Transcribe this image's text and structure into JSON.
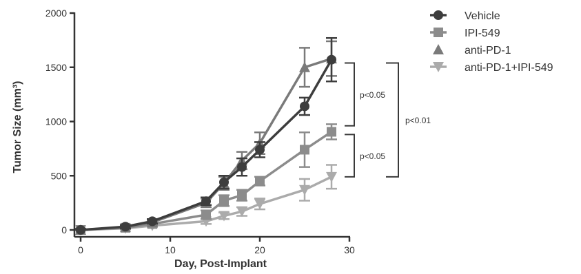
{
  "chart_data": {
    "type": "line",
    "xlabel": "Day, Post-Implant",
    "ylabel": "Tumor Size (mm³)",
    "xlim": [
      0,
      30
    ],
    "ylim": [
      0,
      2000
    ],
    "xticks": [
      0,
      10,
      20,
      30
    ],
    "yticks": [
      0,
      500,
      1000,
      1500,
      2000
    ],
    "grid": false,
    "legend_position": "top-right",
    "series": [
      {
        "name": "Vehicle",
        "marker": "circle",
        "color": "#3d3d3d",
        "x": [
          0,
          5,
          8,
          14,
          16,
          18,
          20,
          25,
          28
        ],
        "y": [
          0,
          30,
          80,
          265,
          440,
          580,
          740,
          1140,
          1570
        ],
        "err": [
          10,
          15,
          20,
          35,
          60,
          80,
          70,
          80,
          200
        ]
      },
      {
        "name": "IPI-549",
        "marker": "square",
        "color": "#8c8c8c",
        "x": [
          0,
          5,
          8,
          14,
          16,
          18,
          20,
          25,
          28
        ],
        "y": [
          0,
          20,
          55,
          140,
          270,
          320,
          450,
          740,
          905
        ],
        "err": [
          5,
          10,
          15,
          40,
          50,
          50,
          40,
          160,
          70
        ]
      },
      {
        "name": "anti-PD-1",
        "marker": "triangle-up",
        "color": "#7a7a7a",
        "x": [
          0,
          5,
          8,
          14,
          16,
          18,
          20,
          25,
          28
        ],
        "y": [
          0,
          25,
          70,
          250,
          430,
          640,
          800,
          1500,
          1580
        ],
        "err": [
          5,
          15,
          20,
          40,
          60,
          80,
          100,
          180,
          160
        ]
      },
      {
        "name": "anti-PD-1+IPI-549",
        "marker": "triangle-down",
        "color": "#ababab",
        "x": [
          0,
          5,
          8,
          14,
          16,
          18,
          20,
          25,
          28
        ],
        "y": [
          0,
          15,
          40,
          80,
          130,
          170,
          240,
          370,
          490
        ],
        "err": [
          5,
          10,
          15,
          25,
          30,
          40,
          50,
          100,
          110
        ]
      }
    ],
    "annotations": [
      {
        "text": "p<0.05"
      },
      {
        "text": "p<0.05"
      },
      {
        "text": "p<0.01"
      }
    ]
  }
}
